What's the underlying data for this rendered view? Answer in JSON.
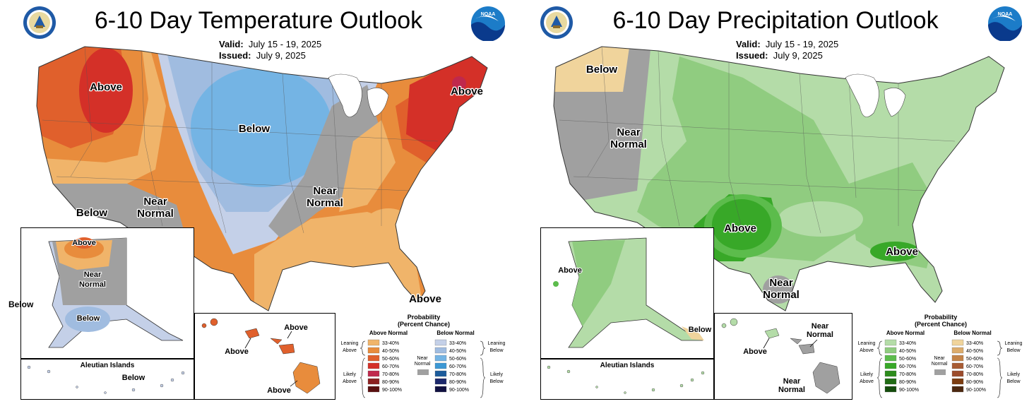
{
  "colors": {
    "above_33_40": "#f0b46a",
    "above_40_50": "#e88c3c",
    "above_50_60": "#e0602c",
    "above_60_70": "#d43028",
    "above_70_80": "#c0284c",
    "above_80_90": "#8c2020",
    "above_90_100": "#5a1010",
    "below_33_40": "#c4d0e8",
    "below_40_50": "#a0bce0",
    "below_50_60": "#74b4e4",
    "below_60_70": "#3c98d4",
    "below_70_80": "#1c5c9c",
    "below_80_90": "#1c286c",
    "below_90_100": "#101040",
    "near_normal": "#a0a0a0",
    "pabove_33_40": "#b4dca8",
    "pabove_40_50": "#90cc80",
    "pabove_50_60": "#5cbc4c",
    "pabove_60_70": "#38a828",
    "pabove_70_80": "#2c8c1c",
    "pabove_80_90": "#206c14",
    "pabove_90_100": "#144c0c",
    "pbelow_33_40": "#f0d49c",
    "pbelow_40_50": "#dcac6c",
    "pbelow_50_60": "#c48448",
    "pbelow_60_70": "#a85c34",
    "pbelow_70_80": "#9c4c2c",
    "pbelow_80_90": "#7c3c10",
    "pbelow_90_100": "#4c2810"
  },
  "temperature": {
    "title": "6-10 Day Temperature Outlook",
    "valid_label": "Valid:",
    "valid_value": "July 15 - 19, 2025",
    "issued_label": "Issued:",
    "issued_value": "July 9, 2025",
    "labels": {
      "above_nw": "Above",
      "above_ne": "Above",
      "above_fl": "Above",
      "below_center": "Below",
      "below_sw": "Below",
      "near_w_1": "Near",
      "near_w_2": "Normal",
      "near_c_1": "Near",
      "near_c_2": "Normal",
      "ak_above": "Above",
      "ak_near_1": "Near",
      "ak_near_2": "Normal",
      "ak_below": "Below",
      "ak_below_outside": "Below",
      "aleutian_title": "Aleutian Islands",
      "aleutian_below": "Below",
      "hi_above_1": "Above",
      "hi_above_2": "Above",
      "hi_above_3": "Above"
    },
    "legend": {
      "title_1": "Probability",
      "title_2": "(Percent Chance)",
      "above_head": "Above Normal",
      "below_head": "Below Normal",
      "leaning_above_1": "Leaning",
      "leaning_above_2": "Above",
      "likely_above_1": "Likely",
      "likely_above_2": "Above",
      "leaning_below_1": "Leaning",
      "leaning_below_2": "Below",
      "likely_below_1": "Likely",
      "likely_below_2": "Below",
      "near_1": "Near",
      "near_2": "Normal",
      "ranges": [
        "33-40%",
        "40-50%",
        "50-60%",
        "60-70%",
        "70-80%",
        "80-90%",
        "90-100%"
      ]
    }
  },
  "precipitation": {
    "title": "6-10 Day Precipitation Outlook",
    "valid_label": "Valid:",
    "valid_value": "July 15 - 19, 2025",
    "issued_label": "Issued:",
    "issued_value": "July 9, 2025",
    "labels": {
      "below_nw": "Below",
      "near_w_1": "Near",
      "near_w_2": "Normal",
      "above_sw": "Above",
      "above_se": "Above",
      "near_tx_1": "Near",
      "near_tx_2": "Normal",
      "ak_above": "Above",
      "ak_below": "Below",
      "aleutian_title": "Aleutian Islands",
      "hi_near_1a": "Near",
      "hi_near_1b": "Normal",
      "hi_above": "Above",
      "hi_near_2a": "Near",
      "hi_near_2b": "Normal"
    },
    "legend": {
      "title_1": "Probability",
      "title_2": "(Percent Chance)",
      "above_head": "Above Normal",
      "below_head": "Below Normal",
      "leaning_above_1": "Leaning",
      "leaning_above_2": "Above",
      "likely_above_1": "Likely",
      "likely_above_2": "Above",
      "leaning_below_1": "Leaning",
      "leaning_below_2": "Below",
      "likely_below_1": "Likely",
      "likely_below_2": "Below",
      "near_1": "Near",
      "near_2": "Normal",
      "ranges": [
        "33-40%",
        "40-50%",
        "50-60%",
        "60-70%",
        "70-80%",
        "80-90%",
        "90-100%"
      ]
    }
  }
}
